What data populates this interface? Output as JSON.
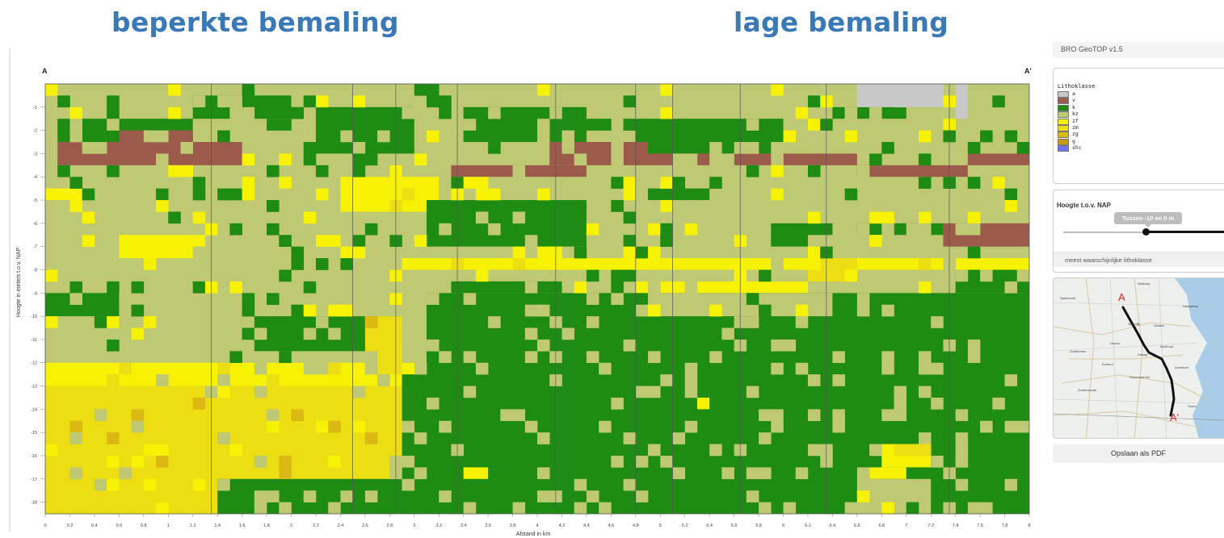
{
  "headings": {
    "left": "beperkte bemaling",
    "right": "lage bemaling"
  },
  "profile": {
    "start_label": "A",
    "end_label": "A'",
    "ylabel": "Hoogte in meters t.o.v. NAP",
    "xlabel": "Afstand in km"
  },
  "chart_data": {
    "type": "heatmap",
    "xlabel": "Afstand in km",
    "ylabel": "Hoogte in meters t.o.v. NAP",
    "x_ticks": [
      "0",
      "0.2",
      "0.4",
      "0.6",
      "0.8",
      "1",
      "1.2",
      "1.4",
      "1.6",
      "1.8",
      "2",
      "2.2",
      "2.4",
      "2.6",
      "2.8",
      "3",
      "3.2",
      "3.4",
      "3.6",
      "3.8",
      "4",
      "4.2",
      "4.4",
      "4.6",
      "4.8",
      "5",
      "5.2",
      "5.4",
      "5.6",
      "5.8",
      "6",
      "6.2",
      "6.4",
      "6.6",
      "6.8",
      "7",
      "7.2",
      "7.4",
      "7.6",
      "7.8",
      "8"
    ],
    "y_ticks": [
      "-1",
      "-2",
      "-3",
      "-4",
      "-5",
      "-6",
      "-7",
      "-8",
      "-9",
      "-10",
      "-11",
      "-12",
      "-13",
      "-14",
      "-15",
      "-16",
      "-17",
      "-18"
    ],
    "xlim": [
      0,
      8
    ],
    "ylim": [
      -18.5,
      0
    ],
    "cell_width_km": 0.1,
    "cell_height_m": 0.5,
    "section_boundaries_km": [
      1.35,
      2.5,
      2.85,
      3.35,
      4.15,
      4.8,
      5.1,
      5.65,
      6.35,
      7.35
    ],
    "classes": [
      "a",
      "v",
      "k",
      "kz",
      "zf",
      "zm",
      "zg",
      "g",
      "shc"
    ],
    "colors": {
      "a": "#c8c8c8",
      "v": "#9c5a4b",
      "k": "#1e8b12",
      "kz": "#bfc872",
      "zf": "#f7f203",
      "zm": "#ecde12",
      "zg": "#dcb814",
      "g": "#c99a11",
      "shc": "#7070ff",
      "nodata": "#ffffff"
    },
    "layers": [
      {
        "class": "kz",
        "x1": 0,
        "x2": 8,
        "y_top": 0,
        "y_bottom": -18.5
      },
      {
        "class": "k",
        "x1": 0.1,
        "x2": 1.2,
        "y_top": -1.5,
        "y_bottom": -2.5
      },
      {
        "class": "k",
        "x1": 1.2,
        "x2": 2.0,
        "y_top": -0.5,
        "y_bottom": -1.5
      },
      {
        "class": "k",
        "x1": 2.2,
        "x2": 3.0,
        "y_top": -1.0,
        "y_bottom": -3.0
      },
      {
        "class": "k",
        "x1": 3.4,
        "x2": 4.4,
        "y_top": -1.0,
        "y_bottom": -2.5
      },
      {
        "class": "k",
        "x1": 4.8,
        "x2": 6.0,
        "y_top": -1.5,
        "y_bottom": -3.0
      },
      {
        "class": "k",
        "x1": 6.4,
        "x2": 7.0,
        "y_top": -1.0,
        "y_bottom": -1.5
      },
      {
        "class": "a",
        "x1": 6.6,
        "x2": 7.3,
        "y_top": 0,
        "y_bottom": -1.0
      },
      {
        "class": "a",
        "x1": 7.4,
        "x2": 7.5,
        "y_top": 0,
        "y_bottom": -1.5
      },
      {
        "class": "v",
        "x1": 0.1,
        "x2": 1.6,
        "y_top": -2.5,
        "y_bottom": -3.5
      },
      {
        "class": "v",
        "x1": 0.6,
        "x2": 1.2,
        "y_top": -2.0,
        "y_bottom": -2.5
      },
      {
        "class": "v",
        "x1": 3.3,
        "x2": 4.4,
        "y_top": -3.5,
        "y_bottom": -4.0
      },
      {
        "class": "v",
        "x1": 4.1,
        "x2": 4.9,
        "y_top": -2.5,
        "y_bottom": -3.5
      },
      {
        "class": "v",
        "x1": 4.9,
        "x2": 6.6,
        "y_top": -3.0,
        "y_bottom": -3.5
      },
      {
        "class": "v",
        "x1": 6.6,
        "x2": 7.5,
        "y_top": -3.5,
        "y_bottom": -4.0
      },
      {
        "class": "v",
        "x1": 7.5,
        "x2": 8.0,
        "y_top": -3.0,
        "y_bottom": -3.5
      },
      {
        "class": "v",
        "x1": 7.3,
        "x2": 8.0,
        "y_top": -6.0,
        "y_bottom": -7.0
      },
      {
        "class": "zf",
        "x1": 0.0,
        "x2": 0.3,
        "y_top": -4.5,
        "y_bottom": -5.0
      },
      {
        "class": "zf",
        "x1": 2.4,
        "x2": 3.2,
        "y_top": -4.0,
        "y_bottom": -5.5
      },
      {
        "class": "zf",
        "x1": 0.6,
        "x2": 1.3,
        "y_top": -6.5,
        "y_bottom": -7.5
      },
      {
        "class": "k",
        "x1": 3.1,
        "x2": 4.4,
        "y_top": -5.0,
        "y_bottom": -7.0
      },
      {
        "class": "k",
        "x1": 4.9,
        "x2": 5.4,
        "y_top": -4.5,
        "y_bottom": -5.0
      },
      {
        "class": "k",
        "x1": 5.9,
        "x2": 6.4,
        "y_top": -6.0,
        "y_bottom": -7.0
      },
      {
        "class": "k",
        "x1": 6.6,
        "x2": 7.3,
        "y_top": -6.0,
        "y_bottom": -6.5
      },
      {
        "class": "zf",
        "x1": 2.9,
        "x2": 8.0,
        "y_top": -7.5,
        "y_bottom": -8.0
      },
      {
        "class": "zf",
        "x1": 4.8,
        "x2": 6.2,
        "y_top": -8.5,
        "y_bottom": -9.5
      },
      {
        "class": "zm",
        "x1": 6.2,
        "x2": 6.6,
        "y_top": -7.5,
        "y_bottom": -8.5
      },
      {
        "class": "zf",
        "x1": 7.1,
        "x2": 7.4,
        "y_top": -9.5,
        "y_bottom": -10.0
      },
      {
        "class": "k",
        "x1": 0.0,
        "x2": 0.6,
        "y_top": -9.0,
        "y_bottom": -10.0
      },
      {
        "class": "k",
        "x1": 1.7,
        "x2": 2.9,
        "y_top": -10.0,
        "y_bottom": -11.5
      },
      {
        "class": "k",
        "x1": 3.1,
        "x2": 8.0,
        "y_top": -9.0,
        "y_bottom": -18.5
      },
      {
        "class": "k",
        "x1": 3.3,
        "x2": 4.2,
        "y_top": -8.5,
        "y_bottom": -9.0
      },
      {
        "class": "k",
        "x1": 7.4,
        "x2": 8.0,
        "y_top": -8.0,
        "y_bottom": -9.0
      },
      {
        "class": "kz",
        "x1": 4.9,
        "x2": 6.4,
        "y_top": -9.0,
        "y_bottom": -10.0
      },
      {
        "class": "zm",
        "x1": 0.0,
        "x2": 2.9,
        "y_top": -12.5,
        "y_bottom": -18.5
      },
      {
        "class": "zf",
        "x1": 0.0,
        "x2": 3.1,
        "y_top": -12.0,
        "y_bottom": -13.0
      },
      {
        "class": "zm",
        "x1": 2.6,
        "x2": 2.9,
        "y_top": -10.0,
        "y_bottom": -12.5
      },
      {
        "class": "k",
        "x1": 2.9,
        "x2": 3.1,
        "y_top": -12.5,
        "y_bottom": -18.5
      },
      {
        "class": "k",
        "x1": 1.4,
        "x2": 2.9,
        "y_top": -17.0,
        "y_bottom": -18.5
      },
      {
        "class": "zf",
        "x1": 6.8,
        "x2": 7.2,
        "y_top": -15.5,
        "y_bottom": -16.5
      },
      {
        "class": "zf",
        "x1": 6.7,
        "x2": 7.0,
        "y_top": -16.5,
        "y_bottom": -17.0
      },
      {
        "class": "kz",
        "x1": 6.6,
        "x2": 7.2,
        "y_top": -17.0,
        "y_bottom": -18.5
      },
      {
        "class": "zf",
        "x1": 5.3,
        "x2": 5.4,
        "y_top": -13.5,
        "y_bottom": -14.0
      },
      {
        "class": "zf",
        "x1": 3.4,
        "x2": 3.6,
        "y_top": -16.5,
        "y_bottom": -17.0
      }
    ]
  },
  "panel": {
    "version": "BRO GeoTOP v1.5",
    "legend": {
      "title": "Lithoklasse",
      "items": [
        {
          "label": "a",
          "color": "#c8c8c8"
        },
        {
          "label": "v",
          "color": "#9c5a4b"
        },
        {
          "label": "k",
          "color": "#1e8b12"
        },
        {
          "label": "kz",
          "color": "#bfc872"
        },
        {
          "label": "zf",
          "color": "#f7f203"
        },
        {
          "label": "zm",
          "color": "#ecde12"
        },
        {
          "label": "zg",
          "color": "#dcb814"
        },
        {
          "label": "g",
          "color": "#c99a11"
        },
        {
          "label": "shc",
          "color": "#7070ff"
        }
      ]
    },
    "height": {
      "title": "Hoogte t.o.v. NAP",
      "tooltip": "Tussen -10 en 0 m",
      "slider_fraction": 0.5
    },
    "mode": "meest waarschijnlijke lithoklasse",
    "map": {
      "start_label": "A",
      "end_label": "A'",
      "places": [
        "Wadway",
        "Hoogwoud",
        "Spanbroek",
        "Spierdijk",
        "Obdam",
        "Berkhout",
        "Ursem",
        "Avenhorn",
        "Zuidermeer",
        "Zwaag",
        "Kolhorn",
        "Schermerhorn",
        "Zuiderwoude",
        "Hoorn"
      ]
    },
    "pdf_label": "Opslaan als PDF"
  }
}
